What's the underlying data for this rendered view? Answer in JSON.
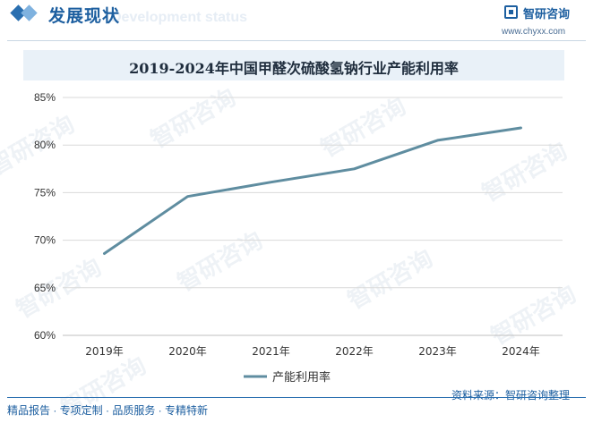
{
  "header": {
    "title": "发展现状",
    "subtitle_ghost": "Development status",
    "brand_name": "智研咨询",
    "brand_url": "www.chyxx.com"
  },
  "watermark_text": "智研咨询",
  "footer": {
    "left": "精品报告 · 专项定制 · 品质服务 · 专精特新",
    "right": "资料来源：智研咨询整理"
  },
  "colors": {
    "line": "#5f8da0",
    "grid": "#d9d9d9",
    "accent": "#1d5fa0"
  },
  "chart_data": {
    "type": "line",
    "title": "2019-2024年中国甲醛次硫酸氢钠行业产能利用率",
    "categories": [
      "2019年",
      "2020年",
      "2021年",
      "2022年",
      "2023年",
      "2024年"
    ],
    "series": [
      {
        "name": "产能利用率",
        "values": [
          68.6,
          74.6,
          76.1,
          77.5,
          80.5,
          81.8
        ]
      }
    ],
    "ylim": [
      60,
      85
    ],
    "yticks": [
      60,
      65,
      70,
      75,
      80,
      85
    ],
    "y_tick_format": "percent",
    "grid": true,
    "legend": "bottom"
  }
}
